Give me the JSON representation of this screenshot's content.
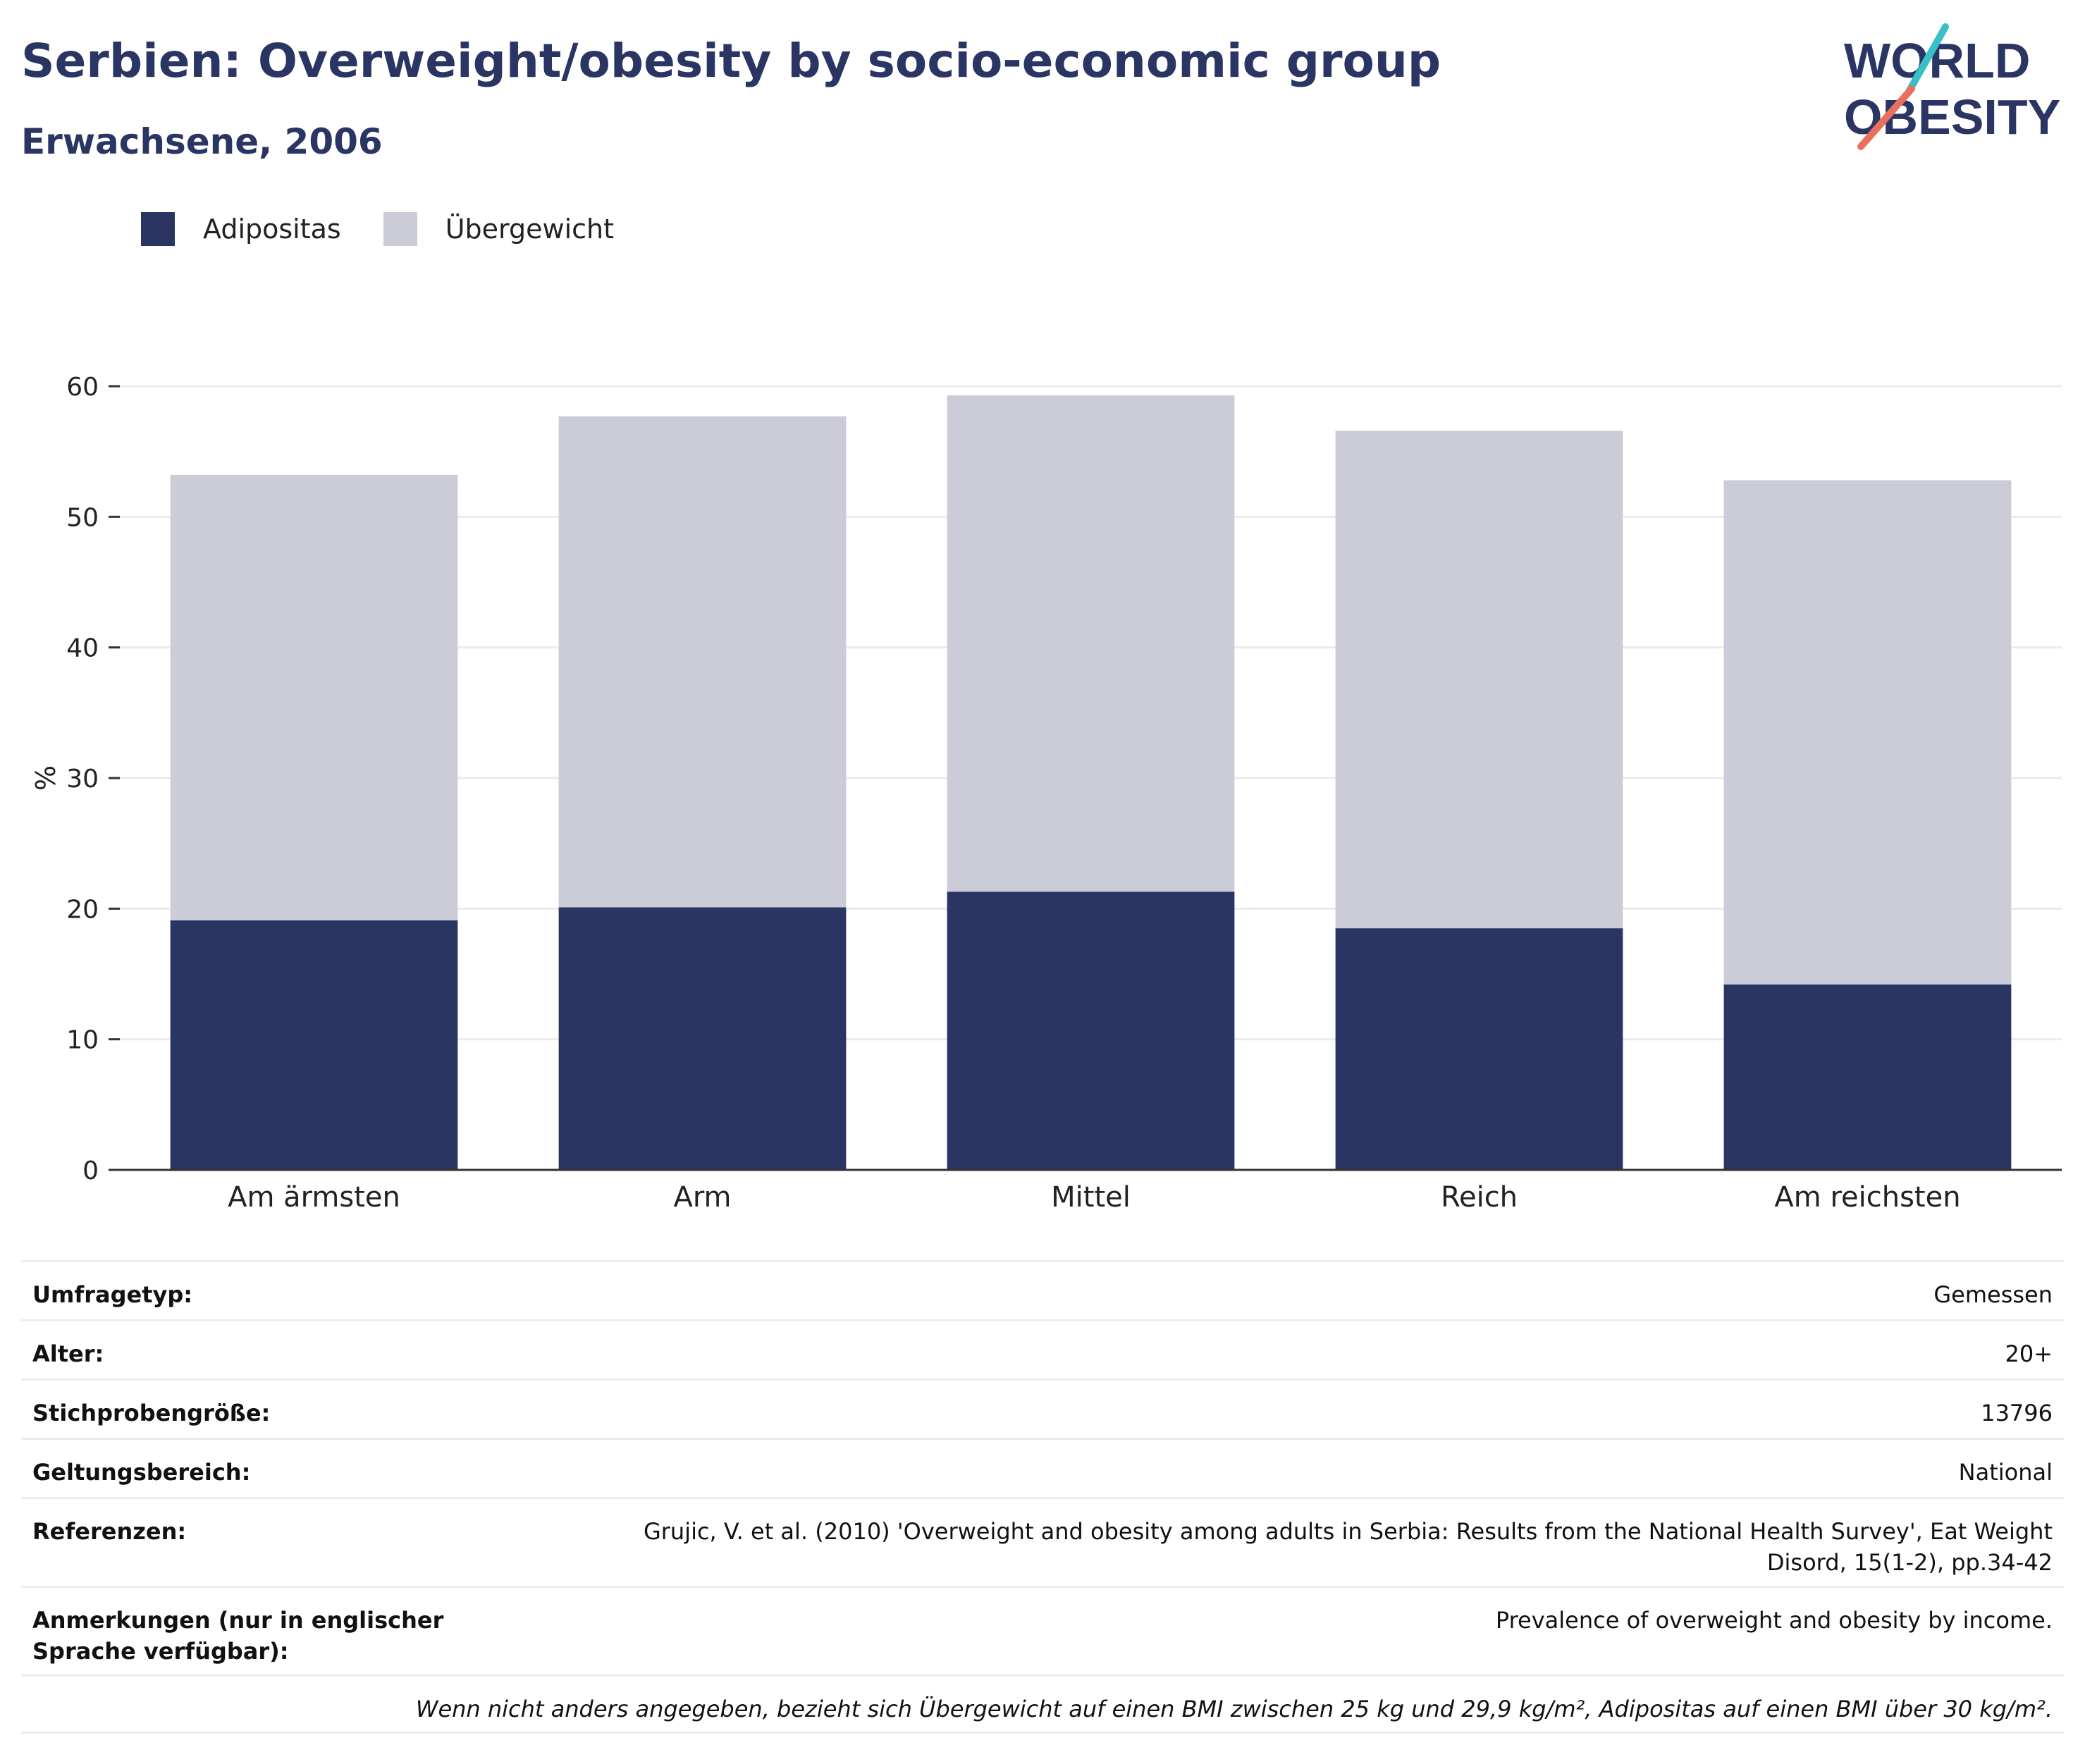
{
  "header": {
    "title": "Serbien: Overweight/obesity by socio-economic group",
    "subtitle": "Erwachsene, 2006"
  },
  "logo": {
    "line1": "WORLD",
    "line2": "OBESITY",
    "icon": "world-obesity-logo"
  },
  "colors": {
    "adipositas": "#2a3563",
    "uebergewicht": "#cbccd8",
    "text": "#2a3563",
    "accent_teal": "#3bbfc6",
    "accent_coral": "#e8705f"
  },
  "legend": [
    {
      "label": "Adipositas"
    },
    {
      "label": "Übergewicht"
    }
  ],
  "chart_data": {
    "type": "bar",
    "stacked": true,
    "categories": [
      "Am ärmsten",
      "Arm",
      "Mittel",
      "Reich",
      "Am reichsten"
    ],
    "series": [
      {
        "name": "Adipositas",
        "values": [
          19.1,
          20.1,
          21.3,
          18.5,
          14.2
        ]
      },
      {
        "name": "Übergewicht",
        "values": [
          34.1,
          37.6,
          38.0,
          38.1,
          38.6
        ]
      }
    ],
    "ylabel": "%",
    "ylim": [
      0,
      60
    ],
    "yticks": [
      0,
      10,
      20,
      30,
      40,
      50,
      60
    ],
    "grid": true,
    "legend_position": "top-left"
  },
  "info": {
    "rows": [
      {
        "key": "Umfragetyp:",
        "value": "Gemessen"
      },
      {
        "key": "Alter:",
        "value": "20+"
      },
      {
        "key": "Stichprobengröße:",
        "value": "13796"
      },
      {
        "key": "Geltungsbereich:",
        "value": "National"
      },
      {
        "key": "Referenzen:",
        "value": "Grujic, V. et al. (2010) 'Overweight and obesity among adults in Serbia: Results from the National Health Survey', Eat Weight Disord, 15(1-2), pp.34-42"
      },
      {
        "key": "Anmerkungen (nur in englischer Sprache verfügbar):",
        "value": "Prevalence of overweight and obesity by income."
      }
    ],
    "footnote": "Wenn nicht anders angegeben, bezieht sich Übergewicht auf einen BMI zwischen 25 kg und 29,9 kg/m², Adipositas auf einen BMI über 30 kg/m²."
  }
}
